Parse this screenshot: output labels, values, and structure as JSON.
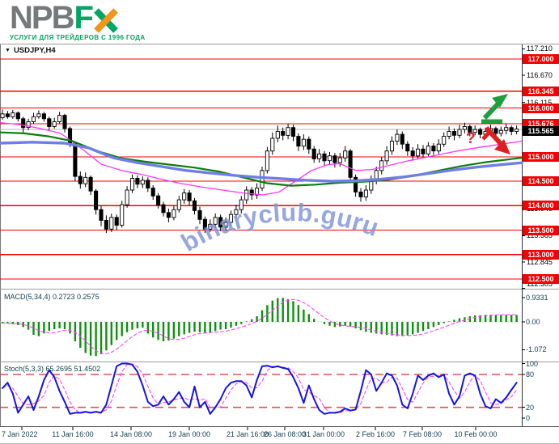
{
  "brand": {
    "npb": "NPB",
    "f": "F",
    "tagline": "УСЛУГИ ДЛЯ ТРЕЙДЕРОВ С 1996 ГОДА",
    "colors": {
      "gray": "#77787b",
      "green": "#00a664",
      "orange": "#f49419"
    }
  },
  "chart": {
    "symbol_label": "USDJPY,H4",
    "watermark": "binaryclub.guru",
    "colors": {
      "level_red": "#f70000",
      "current_gray": "#b4b4b4",
      "ma_blue": "#6e7ee6",
      "ma_green": "#0b7d0b",
      "ma_magenta": "#ff33ff",
      "macd_green": "#0f8f0f",
      "signal_magenta": "#ff44ff",
      "stoch_blue": "#1414e0",
      "stoch_level_red": "#dd3333",
      "arrow_green": "#1e9e3e",
      "arrow_red": "#e02020",
      "watermark_blue": "#8094d8"
    }
  },
  "indicators": {
    "macd_label": "MACD(5,34,4) 0.2723 0.2575",
    "stoch_label": "Stoch(5,3,3) 65.2695 51.4502"
  },
  "price_axis": {
    "current_price": {
      "v": 115.565,
      "label": "115.565"
    },
    "red_levels": [
      117.0,
      116.345,
      116.0,
      115.676,
      115.0,
      114.5,
      114.0,
      113.5,
      113.0,
      112.5
    ],
    "plain_ticks": [
      117.21,
      116.67,
      116.115,
      113.94,
      113.385,
      112.845,
      112.305
    ]
  },
  "macd_axis": [
    {
      "t": "0.9331",
      "v": 0.9331
    },
    {
      "t": "0.00",
      "v": 0
    },
    {
      "t": "-1.072",
      "v": -1.072
    }
  ],
  "stoch_axis": [
    {
      "t": "100",
      "v": 100
    },
    {
      "t": "80",
      "v": 80
    },
    {
      "t": "20",
      "v": 20
    },
    {
      "t": "0",
      "v": 0
    }
  ],
  "time_axis": [
    "7 Jan 2022",
    "11 Jan 16:00",
    "14 Jan 08:00",
    "19 Jan 00:00",
    "21 Jan 16:00",
    "26 Jan 08:00",
    "31 Jan 00:00",
    "2 Feb 16:00",
    "7 Feb 08:00",
    "10 Feb 00:00"
  ],
  "chart_data": [
    {
      "type": "candlestick",
      "title": "USDJPY,H4",
      "ylim": [
        112.3,
        117.3
      ],
      "x_labels": [
        "7 Jan 2022",
        "11 Jan 16:00",
        "14 Jan 08:00",
        "19 Jan 00:00",
        "21 Jan 16:00",
        "26 Jan 08:00",
        "31 Jan 00:00",
        "2 Feb 16:00",
        "7 Feb 08:00",
        "10 Feb 00:00"
      ],
      "horizontal_levels": [
        117.0,
        116.345,
        116.0,
        115.676,
        115.0,
        114.5,
        114.0,
        113.5,
        113.0,
        112.5
      ],
      "current_price": 115.565,
      "candles_ohlc": [
        [
          115.8,
          115.97,
          115.76,
          115.88
        ],
        [
          115.88,
          115.94,
          115.78,
          115.82
        ],
        [
          115.82,
          115.96,
          115.78,
          115.9
        ],
        [
          115.9,
          115.93,
          115.72,
          115.78
        ],
        [
          115.78,
          115.82,
          115.5,
          115.6
        ],
        [
          115.6,
          115.78,
          115.55,
          115.72
        ],
        [
          115.72,
          115.9,
          115.68,
          115.82
        ],
        [
          115.82,
          115.95,
          115.78,
          115.88
        ],
        [
          115.88,
          115.92,
          115.72,
          115.78
        ],
        [
          115.78,
          115.82,
          115.55,
          115.62
        ],
        [
          115.62,
          115.8,
          115.58,
          115.72
        ],
        [
          115.72,
          115.92,
          115.68,
          115.85
        ],
        [
          115.85,
          115.88,
          115.5,
          115.58
        ],
        [
          115.58,
          115.62,
          115.2,
          115.28
        ],
        [
          115.28,
          115.3,
          114.5,
          114.6
        ],
        [
          114.6,
          114.7,
          114.35,
          114.45
        ],
        [
          114.45,
          114.68,
          114.38,
          114.58
        ],
        [
          114.58,
          114.62,
          114.22,
          114.3
        ],
        [
          114.3,
          114.34,
          113.82,
          113.92
        ],
        [
          113.92,
          114.0,
          113.58,
          113.7
        ],
        [
          113.7,
          113.8,
          113.44,
          113.52
        ],
        [
          113.52,
          113.84,
          113.46,
          113.76
        ],
        [
          113.76,
          113.82,
          113.5,
          113.6
        ],
        [
          113.6,
          114.1,
          113.55,
          114.02
        ],
        [
          114.02,
          114.4,
          113.96,
          114.32
        ],
        [
          114.32,
          114.64,
          114.26,
          114.56
        ],
        [
          114.56,
          114.62,
          114.36,
          114.44
        ],
        [
          114.44,
          114.6,
          114.36,
          114.52
        ],
        [
          114.52,
          114.58,
          114.28,
          114.36
        ],
        [
          114.36,
          114.42,
          114.12,
          114.2
        ],
        [
          114.2,
          114.26,
          113.94,
          114.02
        ],
        [
          114.02,
          114.08,
          113.78,
          113.86
        ],
        [
          113.86,
          113.94,
          113.66,
          113.76
        ],
        [
          113.76,
          114.0,
          113.7,
          113.92
        ],
        [
          113.92,
          114.2,
          113.86,
          114.12
        ],
        [
          114.12,
          114.34,
          114.04,
          114.26
        ],
        [
          114.26,
          114.32,
          114.0,
          114.1
        ],
        [
          114.1,
          114.16,
          113.82,
          113.9
        ],
        [
          113.9,
          113.98,
          113.62,
          113.72
        ],
        [
          113.72,
          113.78,
          113.44,
          113.52
        ],
        [
          113.52,
          113.72,
          113.46,
          113.62
        ],
        [
          113.62,
          113.84,
          113.54,
          113.76
        ],
        [
          113.76,
          113.82,
          113.48,
          113.56
        ],
        [
          113.56,
          113.76,
          113.5,
          113.66
        ],
        [
          113.66,
          113.9,
          113.58,
          113.82
        ],
        [
          113.82,
          114.02,
          113.74,
          113.92
        ],
        [
          113.92,
          114.2,
          113.84,
          114.12
        ],
        [
          114.12,
          114.4,
          114.04,
          114.32
        ],
        [
          114.32,
          114.38,
          114.12,
          114.22
        ],
        [
          114.22,
          114.46,
          114.14,
          114.36
        ],
        [
          114.36,
          114.8,
          114.3,
          114.72
        ],
        [
          114.72,
          115.2,
          114.66,
          115.12
        ],
        [
          115.12,
          115.5,
          115.04,
          115.38
        ],
        [
          115.38,
          115.64,
          115.3,
          115.52
        ],
        [
          115.52,
          115.6,
          115.34,
          115.44
        ],
        [
          115.44,
          115.68,
          115.36,
          115.6
        ],
        [
          115.6,
          115.66,
          115.32,
          115.42
        ],
        [
          115.42,
          115.48,
          115.12,
          115.22
        ],
        [
          115.22,
          115.46,
          115.14,
          115.36
        ],
        [
          115.36,
          115.42,
          115.06,
          115.16
        ],
        [
          115.16,
          115.22,
          114.88,
          114.96
        ],
        [
          114.96,
          115.16,
          114.88,
          115.06
        ],
        [
          115.06,
          115.12,
          114.82,
          114.92
        ],
        [
          114.92,
          115.1,
          114.84,
          115.02
        ],
        [
          115.02,
          115.08,
          114.78,
          114.88
        ],
        [
          114.88,
          115.08,
          114.8,
          114.98
        ],
        [
          114.98,
          115.22,
          114.9,
          115.12
        ],
        [
          115.12,
          115.16,
          114.48,
          114.58
        ],
        [
          114.58,
          114.64,
          114.18,
          114.28
        ],
        [
          114.28,
          114.36,
          114.08,
          114.18
        ],
        [
          114.18,
          114.42,
          114.1,
          114.32
        ],
        [
          114.32,
          114.62,
          114.24,
          114.52
        ],
        [
          114.52,
          114.8,
          114.44,
          114.72
        ],
        [
          114.72,
          115.0,
          114.64,
          114.92
        ],
        [
          114.92,
          115.22,
          114.84,
          115.12
        ],
        [
          115.12,
          115.42,
          115.04,
          115.32
        ],
        [
          115.32,
          115.56,
          115.24,
          115.46
        ],
        [
          115.46,
          115.52,
          115.16,
          115.26
        ],
        [
          115.26,
          115.32,
          115.02,
          115.12
        ],
        [
          115.12,
          115.2,
          114.92,
          115.02
        ],
        [
          115.02,
          115.26,
          114.96,
          115.16
        ],
        [
          115.16,
          115.24,
          114.98,
          115.06
        ],
        [
          115.06,
          115.3,
          115.0,
          115.22
        ],
        [
          115.22,
          115.28,
          115.04,
          115.12
        ],
        [
          115.12,
          115.36,
          115.06,
          115.26
        ],
        [
          115.26,
          115.5,
          115.2,
          115.42
        ],
        [
          115.42,
          115.62,
          115.36,
          115.52
        ],
        [
          115.52,
          115.58,
          115.34,
          115.44
        ],
        [
          115.44,
          115.66,
          115.38,
          115.56
        ],
        [
          115.56,
          115.7,
          115.48,
          115.62
        ],
        [
          115.62,
          115.66,
          115.42,
          115.5
        ],
        [
          115.5,
          115.64,
          115.44,
          115.56
        ],
        [
          115.56,
          115.6,
          115.38,
          115.46
        ],
        [
          115.46,
          115.6,
          115.4,
          115.52
        ],
        [
          115.52,
          115.66,
          115.44,
          115.58
        ],
        [
          115.58,
          115.62,
          115.4,
          115.48
        ],
        [
          115.48,
          115.62,
          115.42,
          115.54
        ],
        [
          115.54,
          115.68,
          115.46,
          115.6
        ],
        [
          115.6,
          115.64,
          115.44,
          115.52
        ],
        [
          115.52,
          115.64,
          115.46,
          115.57
        ]
      ],
      "ma_lines": {
        "blue": [
          [
            0,
            115.28
          ],
          [
            40,
            115.3
          ],
          [
            80,
            115.28
          ],
          [
            110,
            115.18
          ],
          [
            140,
            114.98
          ],
          [
            170,
            114.88
          ],
          [
            200,
            114.8
          ],
          [
            230,
            114.72
          ],
          [
            260,
            114.67
          ],
          [
            290,
            114.62
          ],
          [
            320,
            114.58
          ],
          [
            350,
            114.55
          ],
          [
            380,
            114.52
          ],
          [
            410,
            114.5
          ],
          [
            440,
            114.51
          ],
          [
            470,
            114.54
          ],
          [
            500,
            114.59
          ],
          [
            530,
            114.66
          ],
          [
            560,
            114.73
          ],
          [
            590,
            114.79
          ],
          [
            620,
            114.84
          ],
          [
            645,
            114.88
          ]
        ],
        "green": [
          [
            0,
            115.5
          ],
          [
            30,
            115.48
          ],
          [
            60,
            115.42
          ],
          [
            90,
            115.32
          ],
          [
            120,
            115.12
          ],
          [
            150,
            114.97
          ],
          [
            180,
            114.9
          ],
          [
            210,
            114.84
          ],
          [
            240,
            114.78
          ],
          [
            270,
            114.7
          ],
          [
            300,
            114.58
          ],
          [
            330,
            114.46
          ],
          [
            360,
            114.41
          ],
          [
            390,
            114.43
          ],
          [
            420,
            114.47
          ],
          [
            450,
            114.49
          ],
          [
            480,
            114.53
          ],
          [
            510,
            114.61
          ],
          [
            540,
            114.71
          ],
          [
            570,
            114.81
          ],
          [
            600,
            114.89
          ],
          [
            645,
            114.98
          ]
        ],
        "magenta": [
          [
            0,
            115.7
          ],
          [
            25,
            115.66
          ],
          [
            50,
            115.58
          ],
          [
            75,
            115.48
          ],
          [
            100,
            115.18
          ],
          [
            125,
            114.85
          ],
          [
            150,
            114.72
          ],
          [
            175,
            114.64
          ],
          [
            200,
            114.54
          ],
          [
            225,
            114.45
          ],
          [
            250,
            114.38
          ],
          [
            275,
            114.32
          ],
          [
            300,
            114.26
          ],
          [
            325,
            114.22
          ],
          [
            345,
            114.28
          ],
          [
            365,
            114.5
          ],
          [
            385,
            114.72
          ],
          [
            405,
            114.84
          ],
          [
            420,
            114.86
          ],
          [
            440,
            114.72
          ],
          [
            460,
            114.74
          ],
          [
            480,
            114.82
          ],
          [
            505,
            114.92
          ],
          [
            535,
            115.02
          ],
          [
            565,
            115.12
          ],
          [
            595,
            115.2
          ],
          [
            620,
            115.26
          ],
          [
            645,
            115.32
          ]
        ]
      }
    },
    {
      "type": "bar",
      "title": "MACD(5,34,4)",
      "value": 0.2723,
      "signal_value": 0.2575,
      "ylim": [
        -1.5,
        1.22
      ],
      "ticks": [
        0.9331,
        0,
        -1.072
      ],
      "values": [
        -0.05,
        -0.06,
        -0.08,
        -0.12,
        -0.2,
        -0.3,
        -0.5,
        -0.55,
        -0.45,
        -0.35,
        -0.28,
        -0.25,
        -0.28,
        -0.45,
        -0.75,
        -1.0,
        -1.2,
        -1.3,
        -1.32,
        -1.25,
        -1.1,
        -0.9,
        -0.7,
        -0.55,
        -0.4,
        -0.3,
        -0.25,
        -0.22,
        -0.45,
        -0.6,
        -0.7,
        -0.75,
        -0.72,
        -0.65,
        -0.55,
        -0.48,
        -0.42,
        -0.38,
        -0.4,
        -0.45,
        -0.42,
        -0.35,
        -0.3,
        -0.28,
        -0.22,
        -0.15,
        -0.08,
        0.02,
        0.1,
        0.22,
        0.45,
        0.65,
        0.82,
        0.92,
        0.93,
        0.88,
        0.8,
        0.65,
        0.48,
        0.3,
        0.12,
        0.0,
        -0.08,
        -0.15,
        -0.2,
        -0.18,
        -0.15,
        -0.18,
        -0.25,
        -0.32,
        -0.38,
        -0.42,
        -0.45,
        -0.48,
        -0.5,
        -0.52,
        -0.55,
        -0.55,
        -0.52,
        -0.48,
        -0.42,
        -0.35,
        -0.28,
        -0.2,
        -0.12,
        -0.05,
        0.02,
        0.08,
        0.14,
        0.18,
        0.22,
        0.25,
        0.26,
        0.27,
        0.28,
        0.28,
        0.27,
        0.28,
        0.27,
        0.27
      ]
    },
    {
      "type": "line",
      "title": "Stoch(5,3,3)",
      "value": 65.2695,
      "signal_value": 51.4502,
      "ylim": [
        0,
        100
      ],
      "levels": [
        80,
        20
      ],
      "values": [
        55,
        65,
        45,
        10,
        25,
        40,
        15,
        40,
        70,
        88,
        75,
        50,
        30,
        8,
        10,
        10,
        12,
        10,
        12,
        10,
        25,
        60,
        95,
        100,
        100,
        98,
        85,
        60,
        30,
        22,
        25,
        40,
        25,
        35,
        48,
        30,
        20,
        58,
        20,
        30,
        8,
        20,
        35,
        55,
        65,
        68,
        68,
        60,
        38,
        70,
        95,
        96,
        93,
        95,
        92,
        90,
        75,
        55,
        28,
        60,
        35,
        15,
        8,
        10,
        10,
        12,
        18,
        14,
        16,
        50,
        88,
        80,
        50,
        65,
        82,
        78,
        60,
        25,
        18,
        45,
        78,
        70,
        78,
        82,
        75,
        80,
        45,
        25,
        40,
        78,
        82,
        78,
        45,
        22,
        18,
        35,
        28,
        38,
        52,
        65
      ]
    }
  ]
}
